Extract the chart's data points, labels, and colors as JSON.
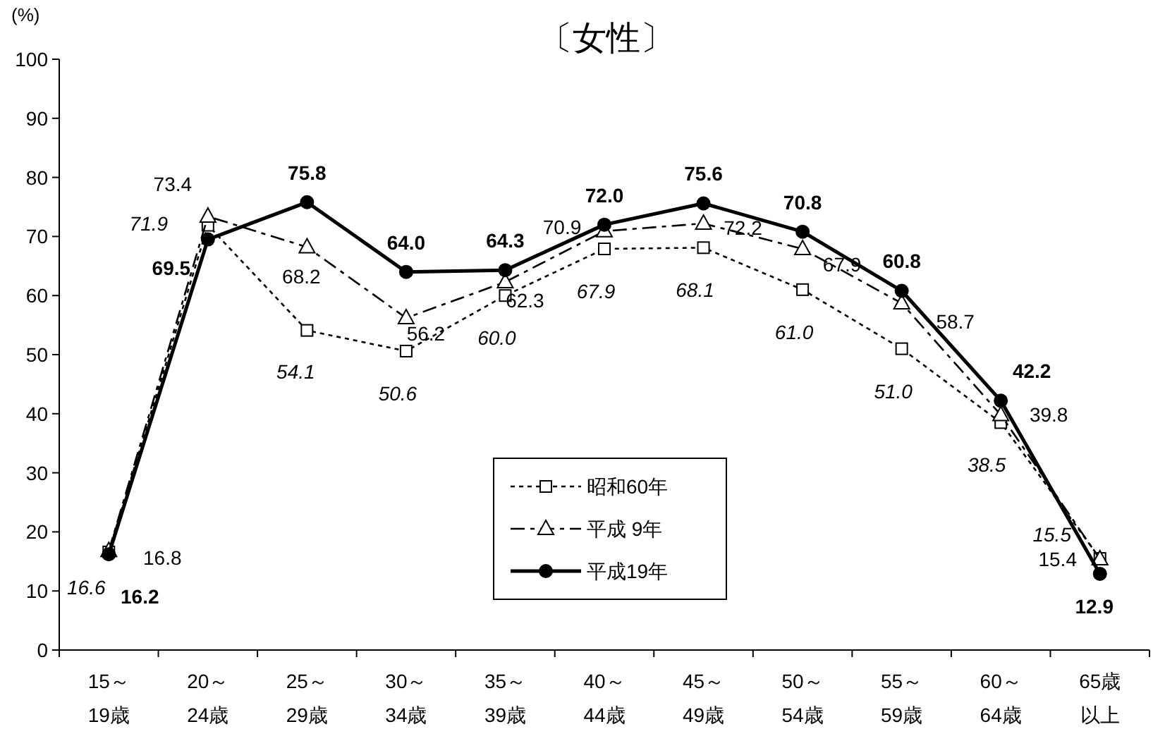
{
  "chart_data": {
    "type": "line",
    "title": "〔女性〕",
    "ylabel": "(%)",
    "categories": [
      "15～19歳",
      "20～24歳",
      "25～29歳",
      "30～34歳",
      "35～39歳",
      "40～44歳",
      "45～49歳",
      "50～54歳",
      "55～59歳",
      "60～64歳",
      "65歳以上"
    ],
    "series": [
      {
        "name": "昭和60年",
        "color": "#000000",
        "marker": "square",
        "line_style": "dotted",
        "values": [
          16.6,
          71.9,
          54.1,
          50.6,
          60.0,
          67.9,
          68.1,
          61.0,
          51.0,
          38.5,
          15.5
        ],
        "value_labels": [
          "16.6",
          "71.9",
          "54.1",
          "50.6",
          "60.0",
          "67.9",
          "68.1",
          "61.0",
          "51.0",
          "38.5",
          "15.5"
        ]
      },
      {
        "name": "平成 9年",
        "color": "#000000",
        "marker": "triangle",
        "line_style": "dashed",
        "values": [
          16.8,
          73.4,
          68.2,
          56.2,
          62.3,
          70.9,
          72.2,
          67.9,
          58.7,
          39.8,
          15.4
        ],
        "value_labels": [
          "16.8",
          "73.4",
          "68.2",
          "56.2",
          "62.3",
          "70.9",
          "72.2",
          "67.9",
          "58.7",
          "39.8",
          "15.4"
        ]
      },
      {
        "name": "平成19年",
        "color": "#000000",
        "marker": "circle",
        "line_style": "solid",
        "values": [
          16.2,
          69.5,
          75.8,
          64.0,
          64.3,
          72.0,
          75.6,
          70.8,
          60.8,
          42.2,
          12.9
        ],
        "value_labels": [
          "16.2",
          "69.5",
          "75.8",
          "64.0",
          "64.3",
          "72.0",
          "75.6",
          "70.8",
          "60.8",
          "42.2",
          "12.9"
        ]
      }
    ],
    "ylim": [
      0,
      100
    ],
    "yticks": [
      0,
      10,
      20,
      30,
      40,
      50,
      60,
      70,
      80,
      90,
      100
    ],
    "legend": "bottom",
    "grid": false
  }
}
